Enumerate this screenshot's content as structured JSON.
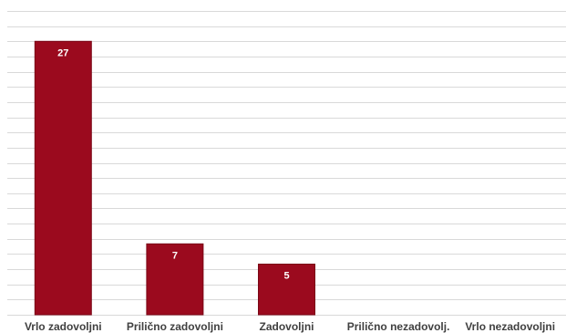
{
  "chart_data": {
    "type": "bar",
    "categories": [
      "Vrlo zadovoljni",
      "Prilično zadovoljni",
      "Zadovoljni",
      "Prilično nezadovolj.",
      "Vrlo nezadovoljni"
    ],
    "values": [
      27,
      7,
      5,
      0,
      0
    ],
    "ylim": [
      0,
      30
    ],
    "grid": true,
    "bar_color": "#9b0a1e",
    "data_label_color": "#ffffff",
    "axis_text_color": "#404040",
    "grid_color": "#d9d9d9"
  }
}
